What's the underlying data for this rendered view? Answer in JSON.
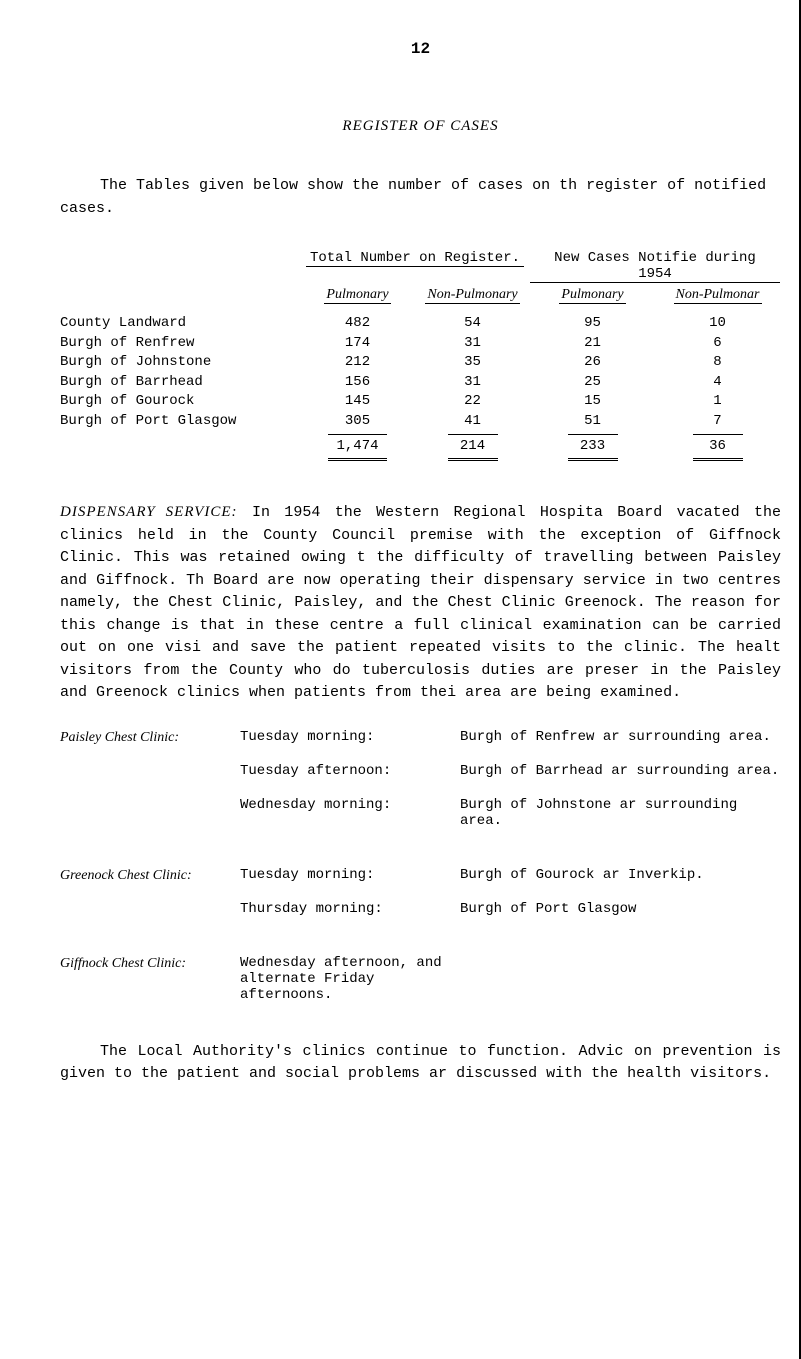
{
  "page_number": "12",
  "title": "REGISTER OF CASES",
  "intro": "The Tables given below show the number of cases on th register of notified cases.",
  "table": {
    "group_headers": [
      "Total Number on Register.",
      "New Cases Notifie during 1954"
    ],
    "sub_headers": [
      "Pulmonary",
      "Non-Pulmonary",
      "Pulmonary",
      "Non-Pulmonar"
    ],
    "rows": [
      {
        "label": "County Landward",
        "v": [
          "482",
          "54",
          "95",
          "10"
        ]
      },
      {
        "label": "Burgh of Renfrew",
        "v": [
          "174",
          "31",
          "21",
          "6"
        ]
      },
      {
        "label": "Burgh of Johnstone",
        "v": [
          "212",
          "35",
          "26",
          "8"
        ]
      },
      {
        "label": "Burgh of Barrhead",
        "v": [
          "156",
          "31",
          "25",
          "4"
        ]
      },
      {
        "label": "Burgh of Gourock",
        "v": [
          "145",
          "22",
          "15",
          "1"
        ]
      },
      {
        "label": "Burgh of Port Glasgow",
        "v": [
          "305",
          "41",
          "51",
          "7"
        ]
      }
    ],
    "totals": [
      "1,474",
      "214",
      "233",
      "36"
    ]
  },
  "dispensary": {
    "label": "DISPENSARY SERVICE:",
    "text": "In 1954 the Western Regional Hospita Board vacated the clinics held in the County Council premise with the exception of Giffnock Clinic. This was retained owing t the difficulty of travelling between Paisley and Giffnock. Th Board are now operating their dispensary service in two centres namely, the Chest Clinic, Paisley, and the Chest Clinic Greenock. The reason for this change is that in these centre a full clinical examination can be carried out on one visi and save the patient repeated visits to the clinic. The healt visitors from the County who do tuberculosis duties are preser in the Paisley and Greenock clinics when patients from thei area are being examined."
  },
  "clinics": [
    {
      "name": "Paisley Chest Clinic:",
      "schedule": [
        {
          "time": "Tuesday morning:",
          "desc": "Burgh of Renfrew ar surrounding area."
        },
        {
          "time": "Tuesday afternoon:",
          "desc": "Burgh of Barrhead ar surrounding area."
        },
        {
          "time": "Wednesday morning:",
          "desc": "Burgh of Johnstone ar surrounding area."
        }
      ]
    },
    {
      "name": "Greenock Chest Clinic:",
      "schedule": [
        {
          "time": "Tuesday morning:",
          "desc": "Burgh of Gourock ar Inverkip."
        },
        {
          "time": "Thursday morning:",
          "desc": "Burgh of Port Glasgow"
        }
      ]
    },
    {
      "name": "Giffnock Chest Clinic:",
      "schedule": [
        {
          "time": "Wednesday afternoon, and alternate Friday afternoons.",
          "desc": ""
        }
      ]
    }
  ],
  "closing": "The Local Authority's clinics continue to function. Advic on prevention is given to the patient and social problems ar discussed with the health visitors.",
  "colors": {
    "text": "#000000",
    "bg": "#ffffff"
  }
}
